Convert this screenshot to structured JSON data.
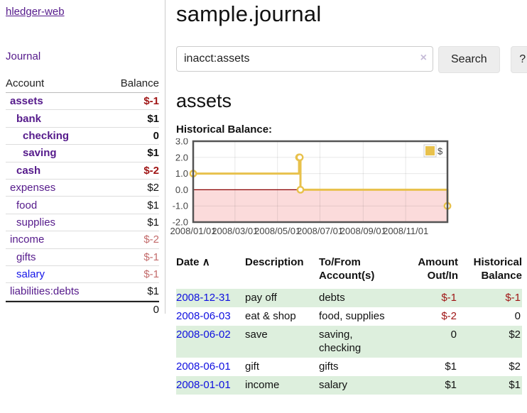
{
  "app": {
    "title": "hledger-web"
  },
  "sidebar": {
    "journal_link": "Journal",
    "accounts": {
      "headers": {
        "account": "Account",
        "balance": "Balance"
      },
      "rows": [
        {
          "name": "assets",
          "depth": 1,
          "bold": true,
          "balance": "$-1",
          "balance_class": "neg"
        },
        {
          "name": "bank",
          "depth": 2,
          "bold": true,
          "balance": "$1",
          "balance_class": ""
        },
        {
          "name": "checking",
          "depth": 3,
          "bold": true,
          "balance": "0",
          "balance_class": ""
        },
        {
          "name": "saving",
          "depth": 3,
          "bold": true,
          "balance": "$1",
          "balance_class": ""
        },
        {
          "name": "cash",
          "depth": 2,
          "bold": true,
          "balance": "$-2",
          "balance_class": "neg"
        },
        {
          "name": "expenses",
          "depth": 1,
          "bold": false,
          "balance": "$2",
          "balance_class": ""
        },
        {
          "name": "food",
          "depth": 2,
          "bold": false,
          "balance": "$1",
          "balance_class": ""
        },
        {
          "name": "supplies",
          "depth": 2,
          "bold": false,
          "balance": "$1",
          "balance_class": ""
        },
        {
          "name": "income",
          "depth": 1,
          "bold": false,
          "balance": "$-2",
          "balance_class": "mneg"
        },
        {
          "name": "gifts",
          "depth": 2,
          "bold": false,
          "balance": "$-1",
          "balance_class": "mneg"
        },
        {
          "name": "salary",
          "depth": 2,
          "bold": false,
          "link_color": "blue",
          "balance": "$-1",
          "balance_class": "mneg"
        },
        {
          "name": "liabilities:debts",
          "depth": 1,
          "bold": false,
          "balance": "$1",
          "balance_class": ""
        }
      ],
      "total": "0"
    }
  },
  "header": {
    "title": "sample.journal"
  },
  "search": {
    "value": "inacct:assets",
    "clear_icon": "×",
    "button_label": "Search",
    "help_label": "?"
  },
  "account_page": {
    "heading": "assets",
    "chart_label": "Historical Balance:"
  },
  "chart_data": {
    "type": "line",
    "title": "Historical Balance",
    "step": true,
    "series": [
      {
        "name": "$",
        "color": "#e8c14c",
        "points": [
          [
            "2008-01-01",
            1
          ],
          [
            "2008-06-01",
            2
          ],
          [
            "2008-06-02",
            2
          ],
          [
            "2008-06-03",
            0
          ],
          [
            "2008-12-31",
            -1
          ]
        ]
      }
    ],
    "xrange": [
      "2008-01-01",
      "2008-12-31"
    ],
    "ylim": [
      -2,
      3
    ],
    "yticks": [
      3.0,
      2.0,
      1.0,
      0.0,
      -1.0,
      -2.0
    ],
    "xticks": [
      "2008/01/01",
      "2008/03/01",
      "2008/05/01",
      "2008/07/01",
      "2008/09/01",
      "2008/11/01"
    ],
    "grid": true,
    "negative_fill": "#fbdbdb",
    "zero_line_color": "#8b0000",
    "legend": {
      "label": "$",
      "position": "top-right"
    }
  },
  "register": {
    "headers": {
      "date": "Date",
      "sort_icon": "∧",
      "description": "Description",
      "account_line1": "To/From",
      "account_line2": "Account(s)",
      "amount_line1": "Amount",
      "amount_line2": "Out/In",
      "balance_line1": "Historical",
      "balance_line2": "Balance"
    },
    "rows": [
      {
        "date": "2008-12-31",
        "description": "pay off",
        "accounts": "debts",
        "amount": "$-1",
        "amount_negative": true,
        "balance": "$-1",
        "balance_negative": true
      },
      {
        "date": "2008-06-03",
        "description": "eat & shop",
        "accounts": "food, supplies",
        "amount": "$-2",
        "amount_negative": true,
        "balance": "0",
        "balance_negative": false
      },
      {
        "date": "2008-06-02",
        "description": "save",
        "accounts": "saving, checking",
        "amount": "0",
        "amount_negative": false,
        "balance": "$2",
        "balance_negative": false
      },
      {
        "date": "2008-06-01",
        "description": "gift",
        "accounts": "gifts",
        "amount": "$1",
        "amount_negative": false,
        "balance": "$2",
        "balance_negative": false
      },
      {
        "date": "2008-01-01",
        "description": "income",
        "accounts": "salary",
        "amount": "$1",
        "amount_negative": false,
        "balance": "$1",
        "balance_negative": false
      }
    ]
  }
}
